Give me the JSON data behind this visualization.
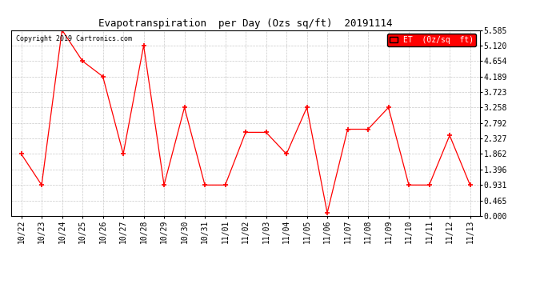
{
  "title": "Evapotranspiration  per Day (Ozs sq/ft)  20191114",
  "copyright": "Copyright 2019 Cartronics.com",
  "legend_label": "ET  (0z/sq  ft)",
  "x_labels": [
    "10/22",
    "10/23",
    "10/24",
    "10/25",
    "10/26",
    "10/27",
    "10/28",
    "10/29",
    "10/30",
    "10/31",
    "11/01",
    "11/02",
    "11/03",
    "11/04",
    "11/05",
    "11/06",
    "11/07",
    "11/08",
    "11/09",
    "11/10",
    "11/11",
    "11/12",
    "11/13"
  ],
  "y_vals": [
    1.862,
    0.931,
    5.585,
    4.654,
    4.189,
    1.862,
    5.12,
    0.931,
    3.258,
    0.931,
    0.931,
    2.513,
    2.513,
    1.862,
    3.258,
    0.093,
    2.606,
    2.606,
    3.258,
    0.931,
    0.931,
    2.42,
    0.931
  ],
  "line_color": "#FF0000",
  "marker": "+",
  "marker_size": 5,
  "marker_linewidth": 1.2,
  "bg_color": "#FFFFFF",
  "grid_color": "#BBBBBB",
  "legend_bg": "#FF0000",
  "legend_text_color": "#FFFFFF",
  "ylim": [
    0.0,
    5.585
  ],
  "yticks": [
    0.0,
    0.465,
    0.931,
    1.396,
    1.862,
    2.327,
    2.792,
    3.258,
    3.723,
    4.189,
    4.654,
    5.12,
    5.585
  ],
  "title_fontsize": 9,
  "tick_fontsize": 7,
  "copyright_fontsize": 6
}
